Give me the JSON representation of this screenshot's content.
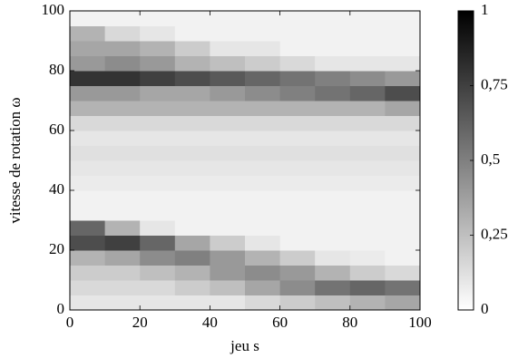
{
  "chart_data": {
    "type": "heatmap",
    "xlabel": "jeu s",
    "ylabel": "vitesse de rotation ω",
    "x": [
      5,
      15,
      25,
      35,
      45,
      55,
      65,
      75,
      85,
      95
    ],
    "y": [
      2.5,
      7.5,
      12.5,
      17.5,
      22.5,
      27.5,
      32.5,
      37.5,
      42.5,
      47.5,
      52.5,
      57.5,
      62.5,
      67.5,
      72.5,
      77.5,
      82.5,
      87.5,
      92.5,
      97.5
    ],
    "z": [
      [
        0.1,
        0.1,
        0.1,
        0.1,
        0.1,
        0.15,
        0.2,
        0.25,
        0.3,
        0.35
      ],
      [
        0.15,
        0.15,
        0.15,
        0.2,
        0.25,
        0.35,
        0.45,
        0.55,
        0.6,
        0.55
      ],
      [
        0.2,
        0.2,
        0.25,
        0.3,
        0.4,
        0.45,
        0.4,
        0.3,
        0.2,
        0.15
      ],
      [
        0.3,
        0.35,
        0.45,
        0.5,
        0.4,
        0.3,
        0.2,
        0.1,
        0.08,
        0.05
      ],
      [
        0.7,
        0.75,
        0.6,
        0.35,
        0.2,
        0.1,
        0.05,
        0.05,
        0.05,
        0.05
      ],
      [
        0.6,
        0.3,
        0.1,
        0.05,
        0.05,
        0.05,
        0.05,
        0.05,
        0.05,
        0.05
      ],
      [
        0.05,
        0.05,
        0.05,
        0.05,
        0.05,
        0.05,
        0.05,
        0.05,
        0.05,
        0.05
      ],
      [
        0.05,
        0.05,
        0.05,
        0.05,
        0.05,
        0.05,
        0.05,
        0.05,
        0.05,
        0.05
      ],
      [
        0.08,
        0.08,
        0.08,
        0.08,
        0.08,
        0.08,
        0.08,
        0.08,
        0.08,
        0.08
      ],
      [
        0.1,
        0.1,
        0.1,
        0.1,
        0.1,
        0.1,
        0.1,
        0.1,
        0.1,
        0.1
      ],
      [
        0.12,
        0.12,
        0.12,
        0.12,
        0.12,
        0.12,
        0.12,
        0.12,
        0.12,
        0.12
      ],
      [
        0.1,
        0.1,
        0.1,
        0.1,
        0.1,
        0.1,
        0.1,
        0.1,
        0.1,
        0.1
      ],
      [
        0.15,
        0.15,
        0.15,
        0.15,
        0.15,
        0.15,
        0.15,
        0.15,
        0.15,
        0.15
      ],
      [
        0.3,
        0.3,
        0.3,
        0.3,
        0.3,
        0.3,
        0.3,
        0.3,
        0.3,
        0.35
      ],
      [
        0.4,
        0.4,
        0.35,
        0.35,
        0.4,
        0.45,
        0.5,
        0.55,
        0.6,
        0.7
      ],
      [
        0.8,
        0.8,
        0.75,
        0.7,
        0.65,
        0.6,
        0.55,
        0.5,
        0.45,
        0.4
      ],
      [
        0.4,
        0.45,
        0.4,
        0.3,
        0.25,
        0.2,
        0.15,
        0.1,
        0.1,
        0.1
      ],
      [
        0.35,
        0.35,
        0.3,
        0.2,
        0.1,
        0.1,
        0.05,
        0.05,
        0.05,
        0.05
      ],
      [
        0.3,
        0.15,
        0.1,
        0.05,
        0.05,
        0.05,
        0.05,
        0.05,
        0.05,
        0.05
      ],
      [
        0.05,
        0.05,
        0.05,
        0.05,
        0.05,
        0.05,
        0.05,
        0.05,
        0.05,
        0.05
      ]
    ],
    "xlim": [
      0,
      100
    ],
    "ylim": [
      0,
      100
    ],
    "xticks": [
      0,
      20,
      40,
      60,
      80,
      100
    ],
    "yticks": [
      0,
      20,
      40,
      60,
      80,
      100
    ],
    "zlim": [
      0,
      1
    ],
    "zticks": [
      0,
      {
        "value": 0.25,
        "label": "0,25"
      },
      {
        "value": 0.5,
        "label": "0,5"
      },
      {
        "value": 0.75,
        "label": "0,75"
      },
      1
    ]
  }
}
